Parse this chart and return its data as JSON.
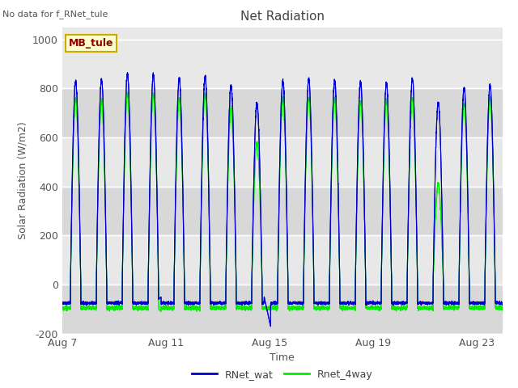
{
  "title": "Net Radiation",
  "xlabel": "Time",
  "ylabel": "Solar Radiation (W/m2)",
  "no_data_text": "No data for f_RNet_tule",
  "station_label": "MB_tule",
  "ylim": [
    -200,
    1050
  ],
  "yticks": [
    -200,
    0,
    200,
    400,
    600,
    800,
    1000
  ],
  "xtick_labels": [
    "Aug 7",
    "Aug 11",
    "Aug 15",
    "Aug 19",
    "Aug 23"
  ],
  "xtick_pos": [
    0,
    4,
    8,
    12,
    16
  ],
  "bg_color": "#e8e8e8",
  "line1_color": "#0000cc",
  "line2_color": "#00ee00",
  "legend_entries": [
    "RNet_wat",
    "Rnet_4way"
  ],
  "n_days": 17,
  "points_per_day": 288,
  "day_amplitudes_blue": [
    830,
    835,
    860,
    855,
    840,
    850,
    810,
    740,
    830,
    840,
    830,
    825,
    820,
    840,
    740,
    800,
    815
  ],
  "day_amplitudes_green": [
    760,
    750,
    780,
    780,
    760,
    780,
    720,
    580,
    760,
    760,
    755,
    750,
    750,
    760,
    410,
    740,
    760
  ],
  "night_val_blue": -75,
  "night_val_green": -95,
  "daytime_start": 0.32,
  "daytime_end": 0.72,
  "grid_color": "#cccccc",
  "spine_color": "#aaaaaa",
  "text_color": "#555555"
}
